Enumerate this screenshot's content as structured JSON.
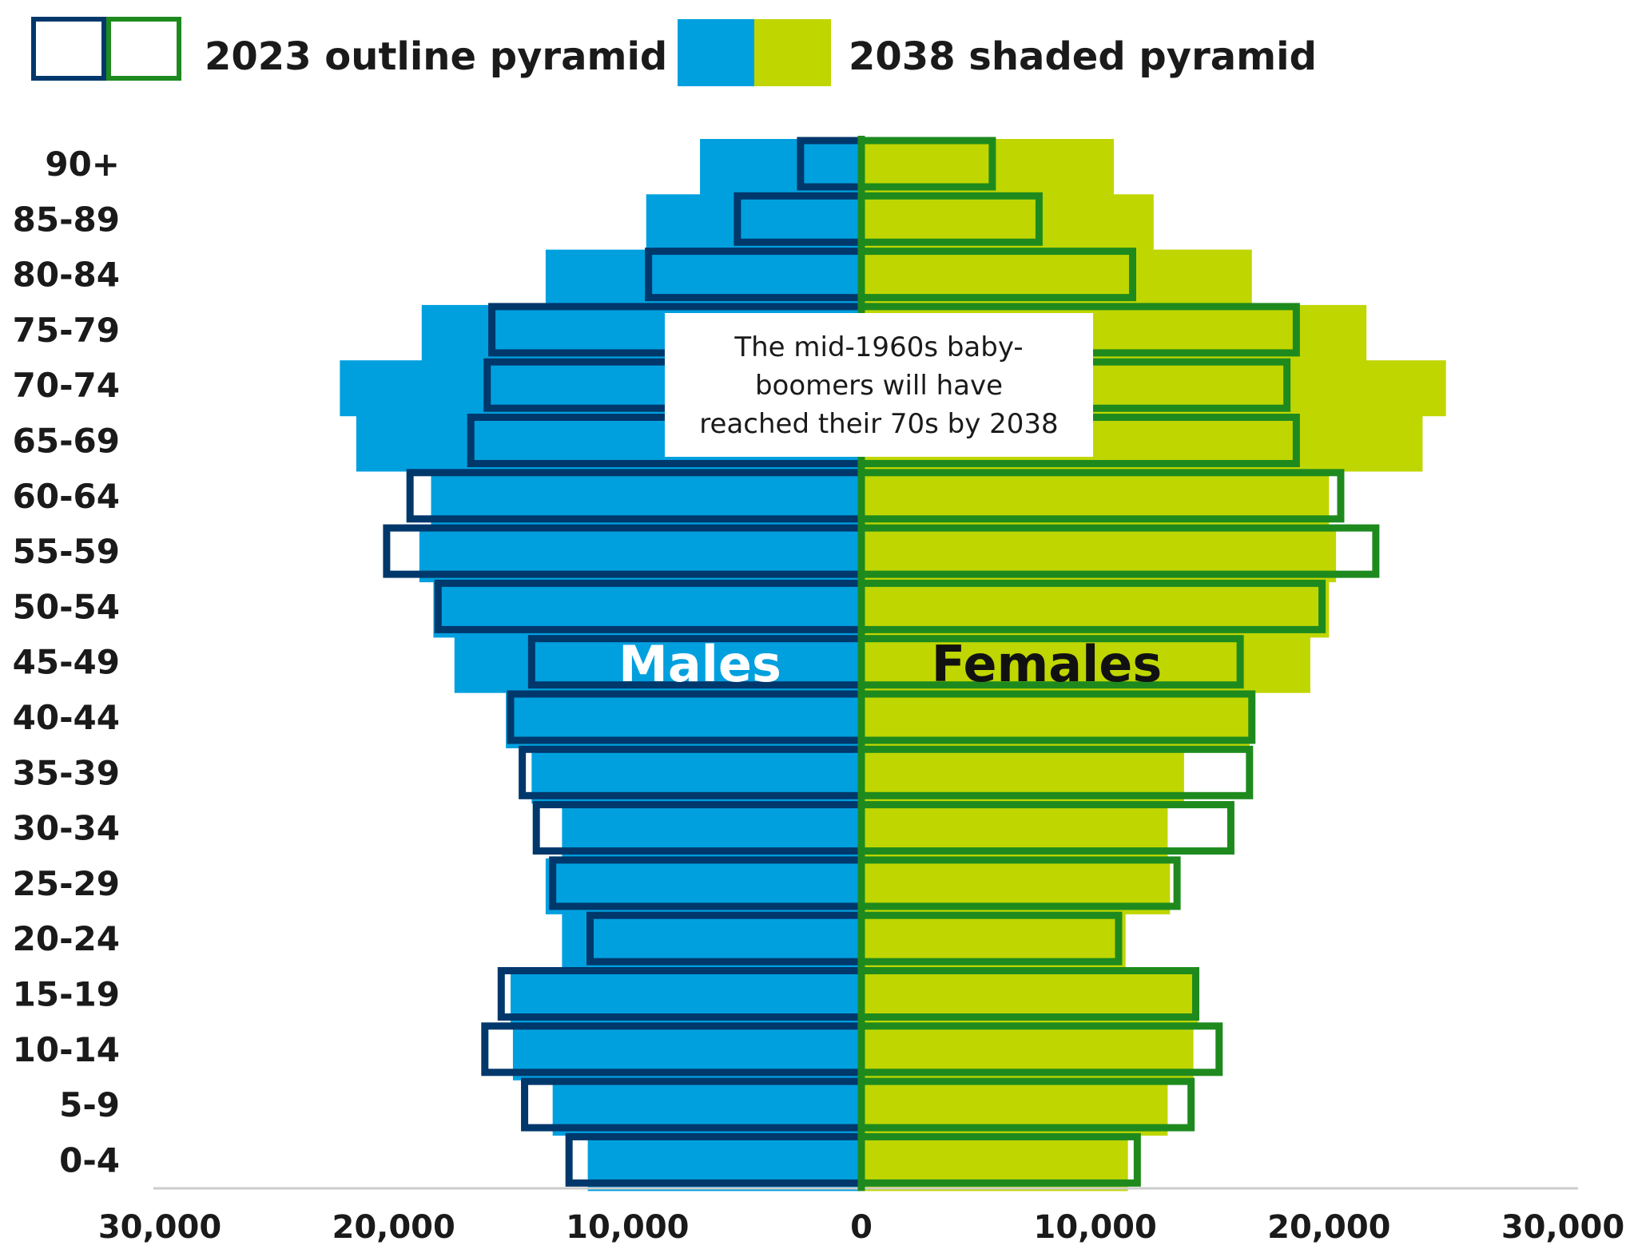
{
  "chart_data": {
    "type": "bar",
    "subtype": "population-pyramid",
    "categories": [
      "90+",
      "85-89",
      "80-84",
      "75-79",
      "70-74",
      "65-69",
      "60-64",
      "55-59",
      "50-54",
      "45-49",
      "40-44",
      "35-39",
      "30-34",
      "25-29",
      "20-24",
      "15-19",
      "10-14",
      "5-9",
      "0-4"
    ],
    "series": [
      {
        "name": "2038 shaded pyramid",
        "sex": "Males",
        "style": "shaded",
        "color": "#00a0df",
        "values": [
          6900,
          9200,
          13500,
          18800,
          22300,
          21600,
          18400,
          18900,
          18300,
          17400,
          15200,
          14100,
          12800,
          13500,
          12800,
          15000,
          14900,
          13200,
          11700
        ]
      },
      {
        "name": "2038 shaded pyramid",
        "sex": "Females",
        "style": "shaded",
        "color": "#bfd600",
        "values": [
          10800,
          12500,
          16700,
          21600,
          25000,
          24000,
          20000,
          20300,
          20000,
          19200,
          16600,
          13800,
          13100,
          13200,
          11300,
          14400,
          14200,
          13100,
          11400
        ]
      },
      {
        "name": "2023 outline pyramid",
        "sex": "Males",
        "style": "outline",
        "color": "#00386b",
        "values": [
          2600,
          5300,
          9100,
          15800,
          16000,
          16700,
          19300,
          20300,
          18100,
          14100,
          15000,
          14500,
          13900,
          13200,
          11600,
          15400,
          16100,
          14400,
          12500
        ]
      },
      {
        "name": "2023 outline pyramid",
        "sex": "Females",
        "style": "outline",
        "color": "#1e8a1e",
        "values": [
          5600,
          7600,
          11600,
          18600,
          18200,
          18600,
          20500,
          22000,
          19700,
          16200,
          16700,
          16600,
          15800,
          13500,
          11000,
          14300,
          15300,
          14100,
          11800
        ]
      }
    ],
    "xlim": [
      -30000,
      30000
    ],
    "x_ticks": [
      "30,000",
      "20,000",
      "10,000",
      "0",
      "10,000",
      "20,000",
      "30,000"
    ],
    "grid": false,
    "legend_position": "top",
    "legend": [
      {
        "label": "2023 outline pyramid",
        "colors": [
          "#00386b",
          "#1e8a1e"
        ],
        "style": "outline"
      },
      {
        "label": "2038 shaded pyramid",
        "colors": [
          "#00a0df",
          "#bfd600"
        ],
        "style": "shaded"
      }
    ],
    "side_labels": {
      "left": "Males",
      "right": "Females"
    },
    "annotation": {
      "lines": [
        "The mid-1960s baby-",
        "boomers will have",
        "reached their 70s by 2038"
      ]
    },
    "center_line_color": "#1e8a1e",
    "axis_color": "#cccccc"
  }
}
